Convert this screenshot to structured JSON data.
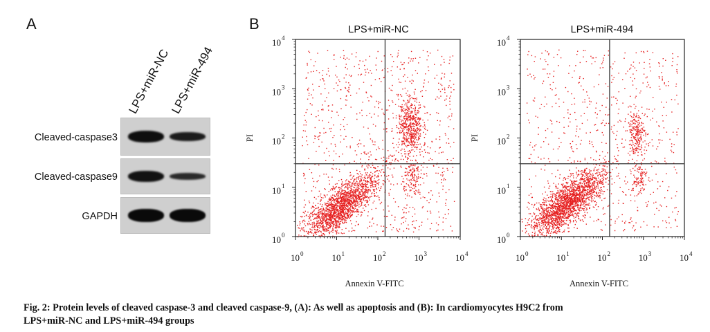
{
  "figure": {
    "panel_a_letter": "A",
    "panel_b_letter": "B",
    "caption_line1": "Fig. 2: Protein levels of cleaved caspase-3 and cleaved caspase-9, (A): As well as apoptosis and (B): In cardiomyocytes H9C2 from",
    "caption_line2": "LPS+miR-NC and LPS+miR-494 groups"
  },
  "western_blot": {
    "lanes": [
      "LPS+miR-NC",
      "LPS+miR-494"
    ],
    "rows": [
      {
        "label": "Cleaved-caspase3",
        "relative_intensity": [
          1.0,
          0.7
        ]
      },
      {
        "label": "Cleaved-caspase9",
        "relative_intensity": [
          1.0,
          0.55
        ]
      },
      {
        "label": "GAPDH",
        "relative_intensity": [
          1.0,
          1.0
        ]
      }
    ]
  },
  "chart_data": [
    {
      "type": "scatter",
      "title": "LPS+miR-NC",
      "xlabel": "Annexin V-FITC",
      "ylabel": "PI",
      "x_scale": "log",
      "y_scale": "log",
      "xlim": [
        1,
        10000
      ],
      "ylim": [
        1,
        10000
      ],
      "x_ticks": [
        "10",
        "10",
        "10",
        "10",
        "10"
      ],
      "x_tick_exp": [
        "0",
        "1",
        "2",
        "3",
        "4"
      ],
      "y_ticks": [
        "10",
        "10",
        "10",
        "10",
        "10"
      ],
      "y_tick_exp": [
        "0",
        "1",
        "2",
        "3",
        "4"
      ],
      "gates": {
        "x": 150,
        "y": 30
      },
      "point_color": "#e62020",
      "clusters": [
        {
          "cx": 12,
          "cy": 4,
          "spread": 0.55,
          "n": 1800
        },
        {
          "cx": 600,
          "cy": 180,
          "spread": 0.18,
          "n": 500
        },
        {
          "cx": 700,
          "cy": 15,
          "spread": 0.14,
          "n": 120
        }
      ],
      "background_points": 900
    },
    {
      "type": "scatter",
      "title": "LPS+miR-494",
      "xlabel": "Annexin V-FITC",
      "ylabel": "PI",
      "x_scale": "log",
      "y_scale": "log",
      "xlim": [
        1,
        10000
      ],
      "ylim": [
        1,
        10000
      ],
      "x_ticks": [
        "10",
        "10",
        "10",
        "10",
        "10"
      ],
      "x_tick_exp": [
        "0",
        "1",
        "2",
        "3",
        "4"
      ],
      "y_ticks": [
        "10",
        "10",
        "10",
        "10",
        "10"
      ],
      "y_tick_exp": [
        "0",
        "1",
        "2",
        "3",
        "4"
      ],
      "gates": {
        "x": 150,
        "y": 30
      },
      "point_color": "#e62020",
      "clusters": [
        {
          "cx": 14,
          "cy": 5,
          "spread": 0.55,
          "n": 2000
        },
        {
          "cx": 650,
          "cy": 130,
          "spread": 0.14,
          "n": 220
        },
        {
          "cx": 750,
          "cy": 16,
          "spread": 0.12,
          "n": 90
        }
      ],
      "background_points": 700
    }
  ]
}
